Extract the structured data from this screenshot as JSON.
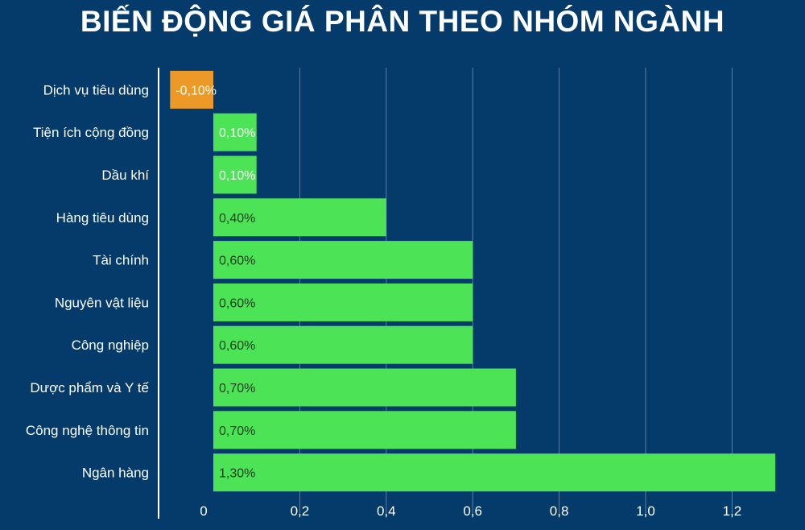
{
  "chart_data": {
    "type": "bar",
    "orientation": "horizontal",
    "title": "BIẾN ĐỘNG GIÁ PHÂN THEO NHÓM NGÀNH",
    "categories": [
      "Dịch vụ tiêu dùng",
      "Tiện ích cộng đồng",
      "Dầu khí",
      "Hàng tiêu dùng",
      "Tài chính",
      "Nguyên vật liệu",
      "Công nghiệp",
      "Dược phẩm và Y tế",
      "Công nghệ thông tin",
      "Ngân hàng"
    ],
    "values": [
      -0.1,
      0.1,
      0.1,
      0.4,
      0.6,
      0.6,
      0.6,
      0.7,
      0.7,
      1.3
    ],
    "data_labels": [
      "-0,10%",
      "0,10%",
      "0,10%",
      "0,40%",
      "0,60%",
      "0,60%",
      "0,60%",
      "0,70%",
      "0,70%",
      "1,30%"
    ],
    "x_ticks": [
      0,
      0.2,
      0.4,
      0.6,
      0.8,
      1.0,
      1.2
    ],
    "x_tick_labels": [
      "0",
      "0,2",
      "0,4",
      "0,6",
      "0,8",
      "1,0",
      "1,2"
    ],
    "xlim": [
      -0.125,
      1.35
    ],
    "xlabel": "",
    "ylabel": "",
    "grid": true,
    "legend": false,
    "colors": {
      "background": "#043b6a",
      "positive": "#4de356",
      "negative": "#ec9a27",
      "gridline": "#5a7fa3",
      "text": "#ffffff",
      "label_on_positive_short": "#ffffff",
      "label_on_positive_long": "#1a3a1a"
    }
  }
}
